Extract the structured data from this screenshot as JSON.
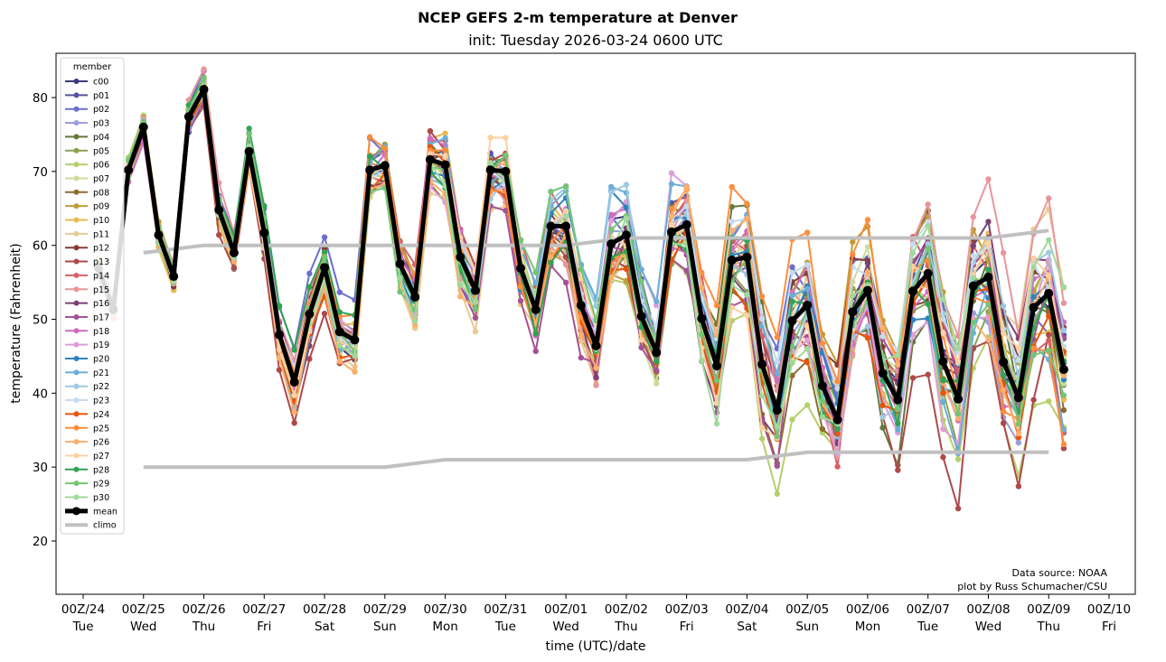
{
  "chart_data": {
    "type": "line",
    "title": "NCEP GEFS 2-m temperature at Denver",
    "subtitle": "init: Tuesday 2026-03-24 0600 UTC",
    "xlabel": "time (UTC)/date",
    "ylabel": "temperature (Fahrenheit)",
    "ylim": [
      13,
      86
    ],
    "yticks": [
      20,
      30,
      40,
      50,
      60,
      70,
      80
    ],
    "xlim_hours_from_00Z24": [
      -6,
      390
    ],
    "xticks": [
      {
        "hour": 0,
        "line1": "00Z/24",
        "line2": "Tue"
      },
      {
        "hour": 24,
        "line1": "00Z/25",
        "line2": "Wed"
      },
      {
        "hour": 48,
        "line1": "00Z/26",
        "line2": "Thu"
      },
      {
        "hour": 72,
        "line1": "00Z/27",
        "line2": "Fri"
      },
      {
        "hour": 96,
        "line1": "00Z/28",
        "line2": "Sat"
      },
      {
        "hour": 120,
        "line1": "00Z/29",
        "line2": "Sun"
      },
      {
        "hour": 144,
        "line1": "00Z/30",
        "line2": "Mon"
      },
      {
        "hour": 168,
        "line1": "00Z/31",
        "line2": "Tue"
      },
      {
        "hour": 192,
        "line1": "00Z/01",
        "line2": "Wed"
      },
      {
        "hour": 216,
        "line1": "00Z/02",
        "line2": "Thu"
      },
      {
        "hour": 240,
        "line1": "00Z/03",
        "line2": "Fri"
      },
      {
        "hour": 264,
        "line1": "00Z/04",
        "line2": "Sat"
      },
      {
        "hour": 288,
        "line1": "00Z/05",
        "line2": "Sun"
      },
      {
        "hour": 312,
        "line1": "00Z/06",
        "line2": "Mon"
      },
      {
        "hour": 336,
        "line1": "00Z/07",
        "line2": "Tue"
      },
      {
        "hour": 360,
        "line1": "00Z/08",
        "line2": "Wed"
      },
      {
        "hour": 384,
        "line1": "00Z/09",
        "line2": "Thu"
      },
      {
        "hour": 408,
        "line1": "00Z/10",
        "line2": "Fri"
      }
    ],
    "forecast_hours": [
      6,
      12,
      18,
      24,
      30,
      36,
      42,
      48,
      54,
      60,
      66,
      72,
      78,
      84,
      90,
      96,
      102,
      108,
      114,
      120,
      126,
      132,
      138,
      144,
      150,
      156,
      162,
      168,
      174,
      180,
      186,
      192,
      198,
      204,
      210,
      216,
      222,
      228,
      234,
      240,
      246,
      252,
      258,
      264,
      270,
      276,
      282,
      288,
      294,
      300,
      306,
      312,
      318,
      324,
      330,
      336,
      342,
      348,
      354,
      360,
      366,
      372,
      378,
      384,
      390
    ],
    "grid": false,
    "legend": {
      "title": "member",
      "placement": "top-left"
    },
    "mean": {
      "name": "mean",
      "color": "#000000",
      "values": [
        57.0,
        51.3,
        70.2,
        76.0,
        61.4,
        55.8,
        77.4,
        81.1,
        64.8,
        59.0,
        72.7,
        61.7,
        47.9,
        41.5,
        50.7,
        57.0,
        48.3,
        47.2,
        70.2,
        70.8,
        57.5,
        53.0,
        71.6,
        70.9,
        58.4,
        53.9,
        70.2,
        70.0,
        56.9,
        51.3,
        62.6,
        62.6,
        51.9,
        46.4,
        60.2,
        61.4,
        50.4,
        45.5,
        61.8,
        62.8,
        50.1,
        43.7,
        58.0,
        58.4,
        43.9,
        37.7,
        49.8,
        51.9,
        41.0,
        36.4,
        51.0,
        53.9,
        42.7,
        39.1,
        53.8,
        56.2,
        44.3,
        39.2,
        54.5,
        55.7,
        44.2,
        39.4,
        51.6,
        53.5,
        43.2
      ]
    },
    "climo_high": {
      "name": "climo",
      "color": "#c0c0c0",
      "hours": [
        24,
        48,
        72,
        96,
        120,
        144,
        168,
        192,
        216,
        240,
        264,
        288,
        312,
        336,
        360,
        384
      ],
      "values": [
        59,
        60,
        60,
        60,
        60,
        60,
        60,
        60,
        61,
        61,
        61,
        61,
        61,
        61,
        61,
        62
      ]
    },
    "climo_low": {
      "name": "climo",
      "color": "#c0c0c0",
      "hours": [
        24,
        48,
        72,
        96,
        120,
        144,
        168,
        192,
        216,
        240,
        264,
        288,
        312,
        336,
        360,
        384
      ],
      "values": [
        30,
        30,
        30,
        30,
        30,
        31,
        31,
        31,
        31,
        31,
        31,
        32,
        32,
        32,
        32,
        32
      ]
    },
    "series": [
      {
        "name": "c00",
        "color": "#393b79",
        "spread": 0.9
      },
      {
        "name": "p01",
        "color": "#5254a3",
        "spread": 1.0
      },
      {
        "name": "p02",
        "color": "#6b6ecf",
        "spread": 1.2
      },
      {
        "name": "p03",
        "color": "#9c9ede",
        "spread": 0.9
      },
      {
        "name": "p04",
        "color": "#637939",
        "spread": 1.1
      },
      {
        "name": "p05",
        "color": "#8ca252",
        "spread": 1.0
      },
      {
        "name": "p06",
        "color": "#b5cf6b",
        "spread": 1.3
      },
      {
        "name": "p07",
        "color": "#cedb9c",
        "spread": 1.0
      },
      {
        "name": "p08",
        "color": "#8c6d31",
        "spread": 1.1
      },
      {
        "name": "p09",
        "color": "#bd9e39",
        "spread": 1.0
      },
      {
        "name": "p10",
        "color": "#e7ba52",
        "spread": 1.1
      },
      {
        "name": "p11",
        "color": "#e7cb94",
        "spread": 1.0
      },
      {
        "name": "p12",
        "color": "#843c39",
        "spread": 1.2
      },
      {
        "name": "p13",
        "color": "#ad494a",
        "spread": 1.4
      },
      {
        "name": "p14",
        "color": "#d6616b",
        "spread": 1.2
      },
      {
        "name": "p15",
        "color": "#e7969c",
        "spread": 1.3
      },
      {
        "name": "p16",
        "color": "#7b4173",
        "spread": 1.1
      },
      {
        "name": "p17",
        "color": "#a55194",
        "spread": 1.3
      },
      {
        "name": "p18",
        "color": "#ce6dbd",
        "spread": 1.1
      },
      {
        "name": "p19",
        "color": "#de9ed6",
        "spread": 1.0
      },
      {
        "name": "p20",
        "color": "#3182bd",
        "spread": 1.0
      },
      {
        "name": "p21",
        "color": "#6baed6",
        "spread": 1.1
      },
      {
        "name": "p22",
        "color": "#9ecae1",
        "spread": 1.0
      },
      {
        "name": "p23",
        "color": "#c6dbef",
        "spread": 1.0
      },
      {
        "name": "p24",
        "color": "#e6550d",
        "spread": 1.2
      },
      {
        "name": "p25",
        "color": "#fd8d3c",
        "spread": 1.0
      },
      {
        "name": "p26",
        "color": "#fdae6b",
        "spread": 1.2
      },
      {
        "name": "p27",
        "color": "#fdd0a2",
        "spread": 1.0
      },
      {
        "name": "p28",
        "color": "#31a354",
        "spread": 1.1
      },
      {
        "name": "p29",
        "color": "#74c476",
        "spread": 1.0
      },
      {
        "name": "p30",
        "color": "#a1d99b",
        "spread": 1.2
      }
    ],
    "annotations": [
      "Data source: NOAA",
      "plot by Russ Schumacher/CSU"
    ]
  }
}
